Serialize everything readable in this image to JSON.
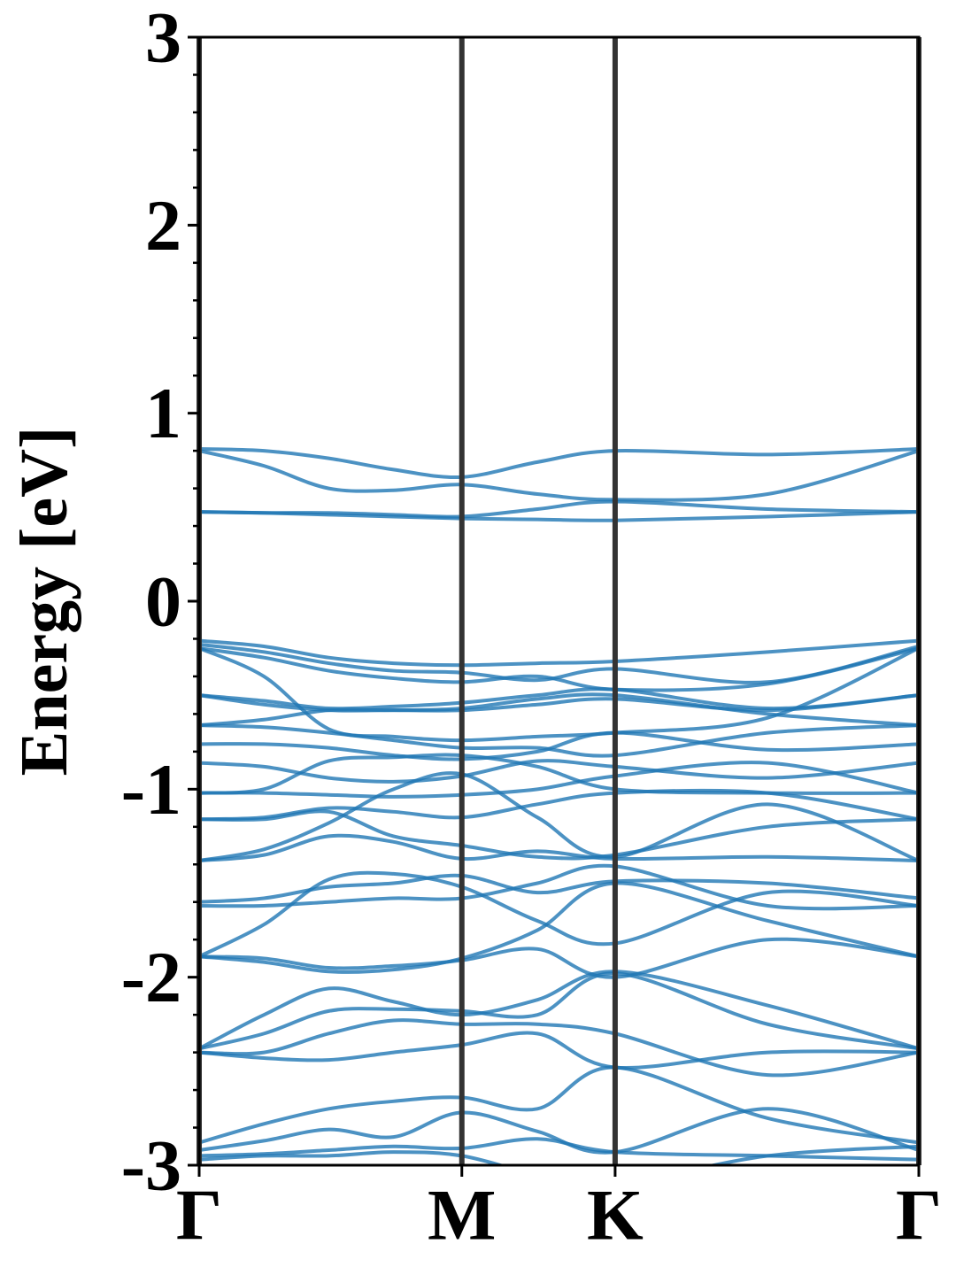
{
  "chart_data": {
    "type": "line",
    "y_label": "Energy [eV]",
    "x": [
      0,
      0.09,
      0.18,
      0.27,
      0.365,
      0.47,
      0.578,
      0.79,
      1
    ],
    "xlim": [
      0,
      1
    ],
    "xticks": [
      {
        "value": 0,
        "label": "Γ"
      },
      {
        "value": 0.365,
        "label": "M"
      },
      {
        "value": 0.578,
        "label": "K"
      },
      {
        "value": 1,
        "label": "Γ"
      }
    ],
    "ylim": [
      -3,
      3
    ],
    "yticks": [
      -3,
      -2,
      -1,
      0,
      1,
      2,
      3
    ],
    "yminorticks": [
      -2.8,
      -2.6,
      -2.4,
      -2.2,
      -1.8,
      -1.6,
      -1.4,
      -1.2,
      -0.8,
      -0.6,
      -0.4,
      -0.2,
      0.2,
      0.4,
      0.6,
      0.8,
      1.2,
      1.4,
      1.6,
      1.8,
      2.2,
      2.4,
      2.6,
      2.8
    ],
    "xgrid": true,
    "color": "#1f77b4",
    "series": [
      {
        "values": [
          0.81,
          0.8,
          0.76,
          0.7,
          0.66,
          0.74,
          0.8,
          0.78,
          0.81
        ]
      },
      {
        "values": [
          0.8,
          0.72,
          0.6,
          0.59,
          0.62,
          0.57,
          0.54,
          0.57,
          0.8
        ]
      },
      {
        "values": [
          0.475,
          0.47,
          0.47,
          0.46,
          0.45,
          0.49,
          0.53,
          0.49,
          0.475
        ]
      },
      {
        "values": [
          0.475,
          0.47,
          0.46,
          0.45,
          0.44,
          0.435,
          0.43,
          0.45,
          0.475
        ]
      },
      {
        "values": [
          -0.21,
          -0.24,
          -0.3,
          -0.33,
          -0.34,
          -0.33,
          -0.32,
          -0.27,
          -0.21
        ]
      },
      {
        "values": [
          -0.23,
          -0.27,
          -0.33,
          -0.37,
          -0.38,
          -0.42,
          -0.36,
          -0.43,
          -0.24
        ]
      },
      {
        "values": [
          -0.25,
          -0.3,
          -0.37,
          -0.41,
          -0.43,
          -0.4,
          -0.47,
          -0.44,
          -0.25
        ]
      },
      {
        "values": [
          -0.25,
          -0.4,
          -0.68,
          -0.72,
          -0.74,
          -0.72,
          -0.7,
          -0.62,
          -0.25
        ]
      },
      {
        "values": [
          -0.5,
          -0.53,
          -0.57,
          -0.56,
          -0.54,
          -0.5,
          -0.47,
          -0.57,
          -0.5
        ]
      },
      {
        "values": [
          -0.5,
          -0.55,
          -0.58,
          -0.58,
          -0.58,
          -0.55,
          -0.52,
          -0.58,
          -0.5
        ]
      },
      {
        "values": [
          -0.66,
          -0.63,
          -0.58,
          -0.58,
          -0.57,
          -0.52,
          -0.5,
          -0.6,
          -0.66
        ]
      },
      {
        "values": [
          -0.66,
          -0.67,
          -0.7,
          -0.74,
          -0.78,
          -0.78,
          -0.82,
          -0.7,
          -0.66
        ]
      },
      {
        "values": [
          -0.76,
          -0.76,
          -0.78,
          -0.82,
          -0.84,
          -0.8,
          -0.7,
          -0.79,
          -0.76
        ]
      },
      {
        "values": [
          -0.86,
          -0.88,
          -0.94,
          -0.96,
          -0.93,
          -0.85,
          -0.88,
          -0.94,
          -0.86
        ]
      },
      {
        "values": [
          -1.02,
          -1.02,
          -1.03,
          -1.04,
          -1.03,
          -1.0,
          -0.93,
          -0.86,
          -1.02
        ]
      },
      {
        "values": [
          -1.02,
          -1.0,
          -0.85,
          -0.83,
          -0.82,
          -0.88,
          -1.0,
          -1.02,
          -1.02
        ]
      },
      {
        "values": [
          -1.16,
          -1.15,
          -1.1,
          -1.12,
          -1.15,
          -1.08,
          -1.02,
          -1.02,
          -1.16
        ]
      },
      {
        "values": [
          -1.16,
          -1.16,
          -1.12,
          -1.25,
          -1.3,
          -1.36,
          -1.35,
          -1.2,
          -1.16
        ]
      },
      {
        "values": [
          -1.38,
          -1.32,
          -1.18,
          -1.0,
          -0.92,
          -1.15,
          -1.36,
          -1.08,
          -1.38
        ]
      },
      {
        "values": [
          -1.38,
          -1.35,
          -1.25,
          -1.28,
          -1.37,
          -1.33,
          -1.37,
          -1.36,
          -1.38
        ]
      },
      {
        "values": [
          -1.6,
          -1.58,
          -1.52,
          -1.5,
          -1.46,
          -1.55,
          -1.49,
          -1.5,
          -1.58
        ]
      },
      {
        "values": [
          -1.62,
          -1.62,
          -1.6,
          -1.58,
          -1.58,
          -1.5,
          -1.41,
          -1.62,
          -1.62
        ]
      },
      {
        "values": [
          -1.89,
          -1.72,
          -1.48,
          -1.45,
          -1.52,
          -1.7,
          -1.82,
          -1.55,
          -1.62
        ]
      },
      {
        "values": [
          -1.89,
          -1.92,
          -1.97,
          -1.96,
          -1.9,
          -1.75,
          -1.5,
          -1.7,
          -1.89
        ]
      },
      {
        "values": [
          -1.89,
          -1.9,
          -1.95,
          -1.94,
          -1.91,
          -1.85,
          -2.0,
          -1.8,
          -1.89
        ]
      },
      {
        "values": [
          -2.38,
          -2.2,
          -2.06,
          -2.13,
          -2.2,
          -2.12,
          -1.97,
          -2.15,
          -2.38
        ]
      },
      {
        "values": [
          -2.38,
          -2.3,
          -2.18,
          -2.17,
          -2.18,
          -2.2,
          -1.98,
          -2.25,
          -2.38
        ]
      },
      {
        "values": [
          -2.4,
          -2.4,
          -2.3,
          -2.23,
          -2.25,
          -2.25,
          -2.3,
          -2.52,
          -2.4
        ]
      },
      {
        "values": [
          -2.4,
          -2.43,
          -2.44,
          -2.4,
          -2.36,
          -2.3,
          -2.48,
          -2.4,
          -2.4
        ]
      },
      {
        "values": [
          -2.88,
          -2.78,
          -2.7,
          -2.66,
          -2.64,
          -2.7,
          -2.48,
          -2.75,
          -2.88
        ]
      },
      {
        "values": [
          -2.92,
          -2.87,
          -2.81,
          -2.85,
          -2.72,
          -2.82,
          -2.93,
          -2.7,
          -2.92
        ]
      },
      {
        "values": [
          -2.95,
          -2.94,
          -2.92,
          -2.9,
          -2.91,
          -2.86,
          -2.93,
          -2.95,
          -2.97
        ]
      },
      {
        "values": [
          -2.97,
          -2.95,
          -2.95,
          -2.93,
          -2.95,
          -3.05,
          -3.1,
          -2.95,
          -2.9
        ]
      }
    ]
  }
}
